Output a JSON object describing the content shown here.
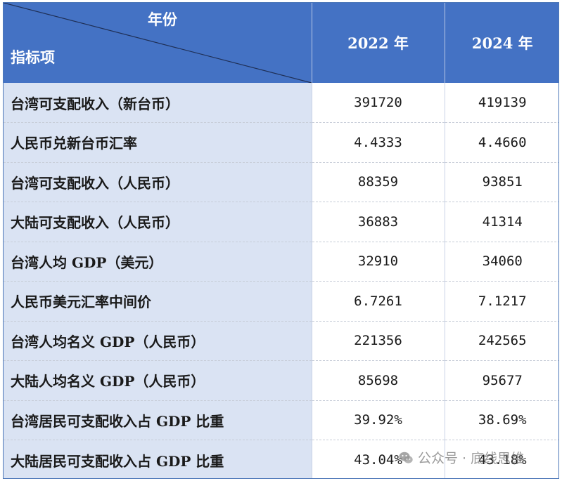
{
  "table": {
    "header": {
      "corner_top": "年份",
      "corner_bottom": "指标项",
      "columns": [
        "2022 年",
        "2024 年"
      ]
    },
    "rows": [
      {
        "label": "台湾可支配收入（新台币）",
        "v2022": "391720",
        "v2024": "419139"
      },
      {
        "label": "人民币兑新台币汇率",
        "v2022": "4.4333",
        "v2024": "4.4660"
      },
      {
        "label": "台湾可支配收入（人民币）",
        "v2022": "88359",
        "v2024": "93851"
      },
      {
        "label": "大陆可支配收入（人民币）",
        "v2022": "36883",
        "v2024": "41314"
      },
      {
        "label": "台湾人均 GDP（美元）",
        "v2022": "32910",
        "v2024": "34060"
      },
      {
        "label": "人民币美元汇率中间价",
        "v2022": "6.7261",
        "v2024": "7.1217"
      },
      {
        "label": "台湾人均名义 GDP（人民币）",
        "v2022": "221356",
        "v2024": "242565"
      },
      {
        "label": "大陆人均名义 GDP（人民币）",
        "v2022": "85698",
        "v2024": "95677"
      },
      {
        "label": "台湾居民可支配收入占 GDP 比重",
        "v2022": "39.92%",
        "v2024": "38.69%"
      },
      {
        "label": "大陆居民可支配收入占 GDP 比重",
        "v2022": "43.04%",
        "v2024": "43.18%"
      }
    ]
  },
  "chart_data": {
    "type": "table",
    "columns": [
      "2022 年",
      "2024 年"
    ],
    "rows": [
      [
        "台湾可支配收入（新台币）",
        "391720",
        "419139"
      ],
      [
        "人民币兑新台币汇率",
        "4.4333",
        "4.4660"
      ],
      [
        "台湾可支配收入（人民币）",
        "88359",
        "93851"
      ],
      [
        "大陆可支配收入（人民币）",
        "36883",
        "41314"
      ],
      [
        "台湾人均 GDP（美元）",
        "32910",
        "34060"
      ],
      [
        "人民币美元汇率中间价",
        "6.7261",
        "7.1217"
      ],
      [
        "台湾人均名义 GDP（人民币）",
        "221356",
        "242565"
      ],
      [
        "大陆人均名义 GDP（人民币）",
        "85698",
        "95677"
      ],
      [
        "台湾居民可支配收入占 GDP 比重",
        "39.92%",
        "38.69%"
      ],
      [
        "大陆居民可支配收入占 GDP 比重",
        "43.04%",
        "43.18%"
      ]
    ]
  },
  "watermark": {
    "text": "公众号 · 底线思维",
    "icon": "wechat-icon"
  },
  "colors": {
    "header_bg": "#4472c4",
    "label_bg": "#dae3f3",
    "header_text": "#ffffff"
  }
}
